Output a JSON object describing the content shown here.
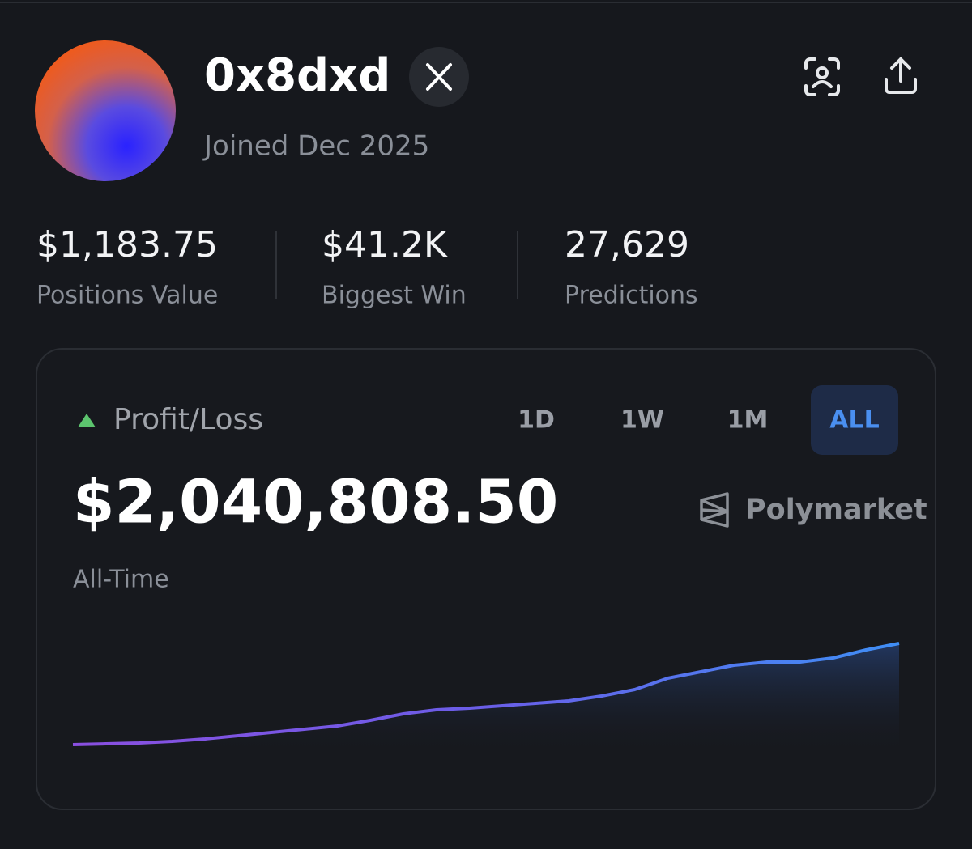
{
  "profile": {
    "username": "0x8dxd",
    "joined": "Joined Dec 2025"
  },
  "stats": [
    {
      "value": "$1,183.75",
      "label": "Positions Value"
    },
    {
      "value": "$41.2K",
      "label": "Biggest Win"
    },
    {
      "value": "27,629",
      "label": "Predictions"
    }
  ],
  "pnl_card": {
    "title": "Profit/Loss",
    "tabs": [
      "1D",
      "1W",
      "1M",
      "ALL"
    ],
    "selected_tab": "ALL",
    "amount": "$2,040,808.50",
    "period": "All-Time",
    "source": "Polymarket",
    "chart": {
      "type": "area",
      "values": [
        0,
        16000,
        33000,
        65000,
        114000,
        180000,
        245000,
        310000,
        376000,
        490000,
        620000,
        702000,
        735000,
        784000,
        833000,
        882000,
        980000,
        1110000,
        1339000,
        1469000,
        1600000,
        1665000,
        1665000,
        1747000,
        1910000,
        2041000
      ]
    }
  }
}
